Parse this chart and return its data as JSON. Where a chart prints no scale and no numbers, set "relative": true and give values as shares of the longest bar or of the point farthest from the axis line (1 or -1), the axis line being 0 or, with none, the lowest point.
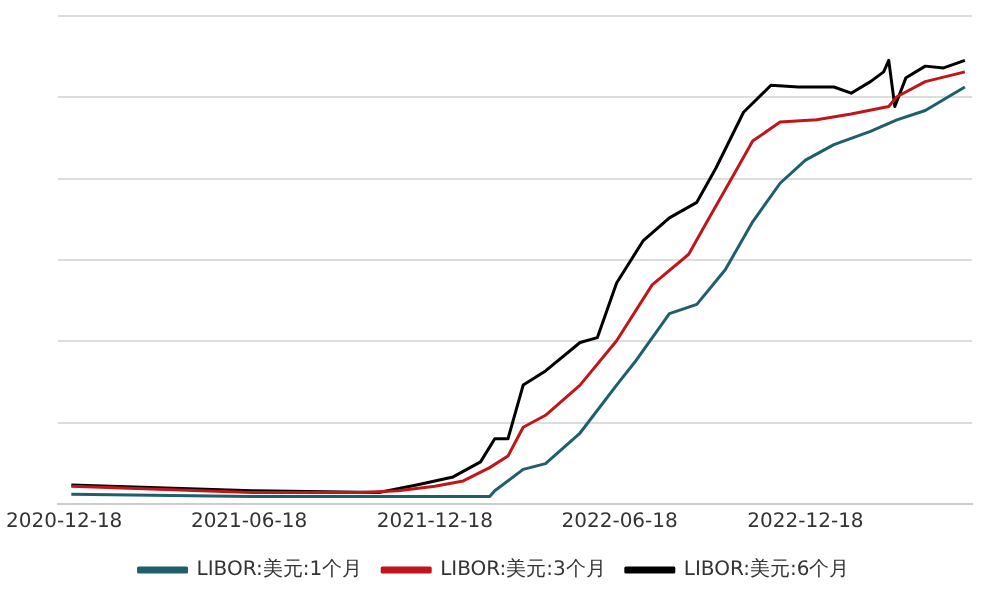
{
  "chart_data": {
    "type": "line",
    "relative": true,
    "grid": "y",
    "legend": "bottom",
    "marker": "none",
    "line_style": "solid",
    "xlim": [
      "2020-12-12",
      "2023-05-31"
    ],
    "xticks": [
      "2020-12-18",
      "2021-06-18",
      "2021-12-18",
      "2022-06-18",
      "2022-12-18"
    ],
    "series": [
      {
        "name": "LIBOR:美元:1个月",
        "color": "#1f5f6b",
        "x": [
          "2020-12-25",
          "2021-06-21",
          "2021-10-06",
          "2022-02-10",
          "2022-02-15",
          "2022-03-15",
          "2022-04-06",
          "2022-05-10",
          "2022-06-15",
          "2022-07-03",
          "2022-08-06",
          "2022-09-02",
          "2022-09-30",
          "2022-10-27",
          "2022-11-23",
          "2022-12-18",
          "2023-01-15",
          "2023-02-20",
          "2023-03-18",
          "2023-04-15",
          "2023-05-24"
        ],
        "values": [
          0.022,
          0.017,
          0.017,
          0.017,
          0.03,
          0.078,
          0.091,
          0.16,
          0.268,
          0.32,
          0.429,
          0.45,
          0.528,
          0.636,
          0.723,
          0.775,
          0.81,
          0.84,
          0.866,
          0.887,
          0.94
        ]
      },
      {
        "name": "LIBOR:美元:3个月",
        "color": "#c0151b",
        "x": [
          "2020-12-25",
          "2021-06-21",
          "2021-10-06",
          "2021-11-12",
          "2021-12-18",
          "2022-01-15",
          "2022-02-10",
          "2022-02-28",
          "2022-03-15",
          "2022-04-06",
          "2022-05-10",
          "2022-06-15",
          "2022-07-20",
          "2022-08-25",
          "2022-09-12",
          "2022-10-09",
          "2022-10-27",
          "2022-11-23",
          "2022-12-29",
          "2023-02-01",
          "2023-03-10",
          "2023-03-18",
          "2023-04-15",
          "2023-05-24"
        ],
        "values": [
          0.04,
          0.026,
          0.026,
          0.03,
          0.04,
          0.052,
          0.082,
          0.108,
          0.173,
          0.2,
          0.268,
          0.368,
          0.494,
          0.563,
          0.636,
          0.745,
          0.818,
          0.861,
          0.866,
          0.879,
          0.896,
          0.918,
          0.952,
          0.974
        ]
      },
      {
        "name": "LIBOR:美元:6个月",
        "color": "#000000",
        "x": [
          "2020-12-25",
          "2021-06-21",
          "2021-10-24",
          "2021-11-30",
          "2022-01-05",
          "2022-02-01",
          "2022-02-15",
          "2022-02-28",
          "2022-03-15",
          "2022-04-06",
          "2022-05-10",
          "2022-05-27",
          "2022-06-15",
          "2022-07-11",
          "2022-08-06",
          "2022-09-02",
          "2022-09-21",
          "2022-10-18",
          "2022-11-14",
          "2022-12-11",
          "2023-01-15",
          "2023-02-01",
          "2023-02-20",
          "2023-03-05",
          "2023-03-10",
          "2023-03-16",
          "2023-03-27",
          "2023-04-15",
          "2023-05-03",
          "2023-05-24"
        ],
        "values": [
          0.043,
          0.03,
          0.026,
          0.043,
          0.061,
          0.095,
          0.147,
          0.147,
          0.268,
          0.3,
          0.364,
          0.375,
          0.498,
          0.593,
          0.645,
          0.68,
          0.758,
          0.883,
          0.944,
          0.94,
          0.94,
          0.926,
          0.952,
          0.974,
          1.0,
          0.896,
          0.961,
          0.987,
          0.983,
          1.0
        ]
      }
    ]
  }
}
